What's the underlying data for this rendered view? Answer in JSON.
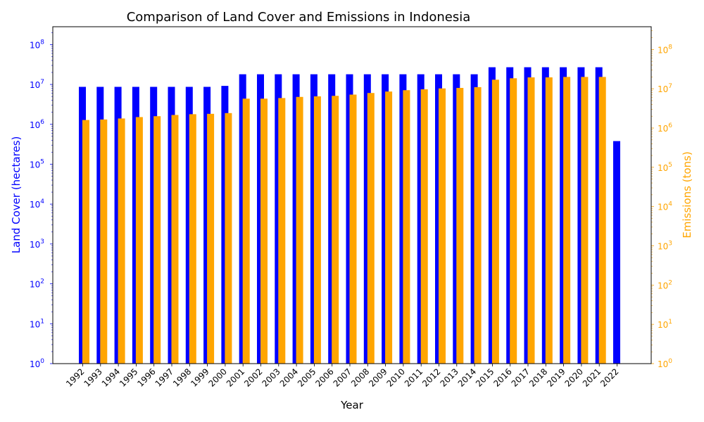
{
  "chart_data": {
    "type": "bar",
    "title": "Comparison of Land Cover and Emissions in Indonesia",
    "xlabel": "Year",
    "ylabel": "Land Cover (hectares)",
    "ylabel_right": "Emissions (tons)",
    "yscale": "log",
    "ylim": [
      1,
      280000000
    ],
    "ylim_right": [
      1,
      380000000
    ],
    "left_ticks": [
      {
        "value": 1,
        "base": "10",
        "exp": "0"
      },
      {
        "value": 10,
        "base": "10",
        "exp": "1"
      },
      {
        "value": 100,
        "base": "10",
        "exp": "2"
      },
      {
        "value": 1000,
        "base": "10",
        "exp": "3"
      },
      {
        "value": 10000,
        "base": "10",
        "exp": "4"
      },
      {
        "value": 100000,
        "base": "10",
        "exp": "5"
      },
      {
        "value": 1000000,
        "base": "10",
        "exp": "6"
      },
      {
        "value": 10000000,
        "base": "10",
        "exp": "7"
      },
      {
        "value": 100000000,
        "base": "10",
        "exp": "8"
      }
    ],
    "right_ticks": [
      {
        "value": 1,
        "base": "10",
        "exp": "0"
      },
      {
        "value": 10,
        "base": "10",
        "exp": "1"
      },
      {
        "value": 100,
        "base": "10",
        "exp": "2"
      },
      {
        "value": 1000,
        "base": "10",
        "exp": "3"
      },
      {
        "value": 10000,
        "base": "10",
        "exp": "4"
      },
      {
        "value": 100000,
        "base": "10",
        "exp": "5"
      },
      {
        "value": 1000000,
        "base": "10",
        "exp": "6"
      },
      {
        "value": 10000000,
        "base": "10",
        "exp": "7"
      },
      {
        "value": 100000000,
        "base": "10",
        "exp": "8"
      }
    ],
    "categories": [
      "1992",
      "1993",
      "1994",
      "1995",
      "1996",
      "1997",
      "1998",
      "1999",
      "2000",
      "2001",
      "2002",
      "2003",
      "2004",
      "2005",
      "2006",
      "2007",
      "2008",
      "2009",
      "2010",
      "2011",
      "2012",
      "2013",
      "2014",
      "2015",
      "2016",
      "2017",
      "2018",
      "2019",
      "2020",
      "2021",
      "2022"
    ],
    "series": [
      {
        "axis": "left",
        "color": "#0000ff",
        "values": [
          8700000,
          8700000,
          8700000,
          8700000,
          8700000,
          8700000,
          8700000,
          8700000,
          9200000,
          18000000,
          18000000,
          18000000,
          18000000,
          18000000,
          18000000,
          18000000,
          18000000,
          18000000,
          18000000,
          18000000,
          18000000,
          18000000,
          18000000,
          27000000,
          27000000,
          27000000,
          27000000,
          27000000,
          27000000,
          27000000,
          380000
        ]
      },
      {
        "axis": "right",
        "color": "#ffa500",
        "values": [
          1600000,
          1650000,
          1750000,
          1900000,
          2000000,
          2150000,
          2250000,
          2300000,
          2400000,
          5600000,
          5600000,
          5800000,
          6200000,
          6400000,
          6600000,
          7100000,
          7800000,
          8500000,
          9200000,
          9700000,
          10200000,
          10500000,
          11000000,
          17000000,
          18500000,
          19500000,
          19500000,
          20000000,
          20000000,
          20000000,
          null
        ]
      }
    ],
    "colors": {
      "left_axis": "#0000ff",
      "right_axis": "#ffa500",
      "frame": "#000000"
    },
    "grid": false,
    "legend": "none"
  }
}
